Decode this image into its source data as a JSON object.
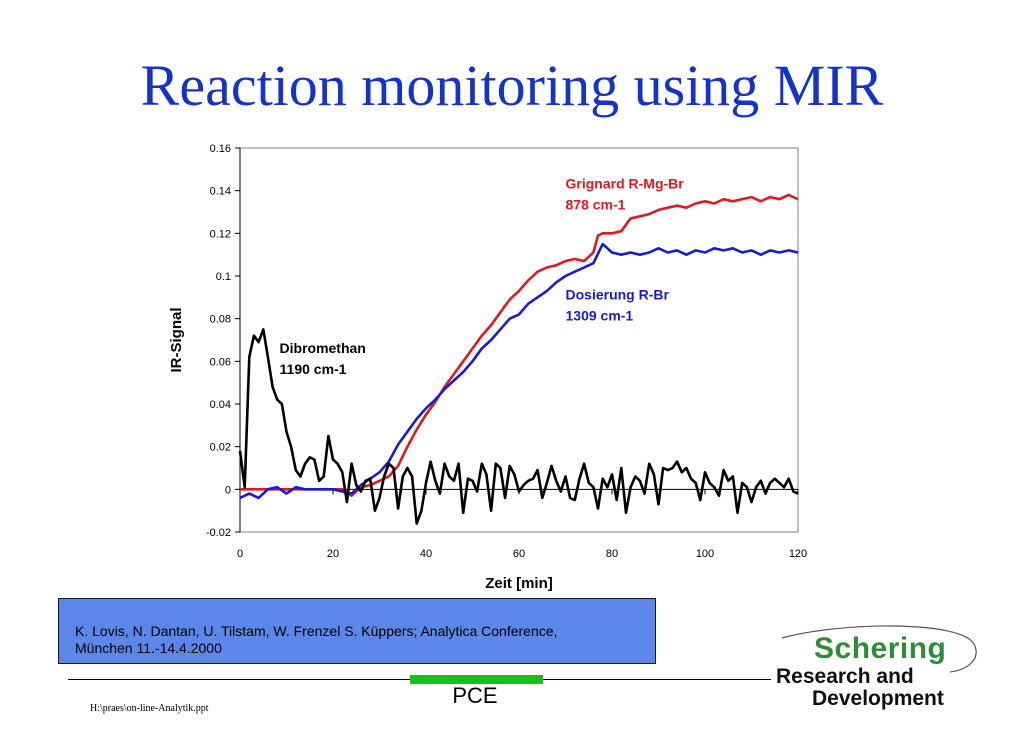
{
  "slide": {
    "title": "Reaction monitoring using MIR",
    "footer_label": "PCE",
    "file_path": "H:\\praes\\on-line-Analytik.ppt"
  },
  "reference": {
    "line1": "K. Lovis, N. Dantan, U. Tilstam, W. Frenzel S. Küppers; Analytica Conference,",
    "line2": "München 11.-14.4.2000"
  },
  "logo": {
    "brand": "Schering",
    "sub1": "Research and",
    "sub2": "Development"
  },
  "colors": {
    "title": "#1433cc",
    "grignard": "#e0191f",
    "dosierung": "#1a1ad6",
    "dibromethan": "#000000",
    "reference_box": "#5b86ea",
    "accent_bar": "#16c016"
  },
  "chart_data": {
    "type": "line",
    "xlabel": "Zeit [min]",
    "ylabel": "IR-Signal",
    "xlim": [
      0,
      120
    ],
    "ylim": [
      -0.02,
      0.16
    ],
    "xticks": [
      0,
      20,
      40,
      60,
      80,
      100,
      120
    ],
    "yticks": [
      -0.02,
      0,
      0.02,
      0.04,
      0.06,
      0.08,
      0.1,
      0.12,
      0.14,
      0.16
    ],
    "ytick_labels": [
      "-0.02",
      "0",
      "0.02",
      "0.04",
      "0.06",
      "0.08",
      "0.1",
      "0.12",
      "0.14",
      "0.16"
    ],
    "grid": false,
    "annotations": [
      {
        "series": "grignard",
        "lines": [
          "Grignard R-Mg-Br",
          "878 cm-1"
        ],
        "x": 70,
        "y": 0.141
      },
      {
        "series": "dosierung",
        "lines": [
          "Dosierung R-Br",
          "1309 cm-1"
        ],
        "x": 70,
        "y": 0.089
      },
      {
        "series": "dibromethan",
        "lines": [
          "Dibromethan",
          "1190 cm-1"
        ],
        "x": 8.5,
        "y": 0.064
      }
    ],
    "series": [
      {
        "id": "grignard",
        "color": "#e0191f",
        "x": [
          0,
          22,
          24,
          26,
          28,
          30,
          32,
          34,
          36,
          38,
          40,
          42,
          44,
          46,
          48,
          50,
          52,
          54,
          56,
          58,
          60,
          62,
          64,
          66,
          68,
          70,
          72,
          74,
          76,
          77,
          78,
          80,
          82,
          84,
          86,
          88,
          90,
          92,
          94,
          96,
          98,
          100,
          102,
          104,
          106,
          108,
          110,
          112,
          114,
          116,
          118,
          120
        ],
        "y": [
          0,
          0,
          -0.003,
          0.001,
          0.002,
          0.004,
          0.006,
          0.011,
          0.02,
          0.028,
          0.035,
          0.041,
          0.048,
          0.054,
          0.06,
          0.066,
          0.072,
          0.077,
          0.083,
          0.089,
          0.093,
          0.098,
          0.102,
          0.104,
          0.105,
          0.107,
          0.108,
          0.107,
          0.111,
          0.119,
          0.12,
          0.12,
          0.121,
          0.127,
          0.128,
          0.129,
          0.131,
          0.132,
          0.133,
          0.132,
          0.134,
          0.135,
          0.134,
          0.136,
          0.135,
          0.136,
          0.137,
          0.135,
          0.137,
          0.136,
          0.138,
          0.136
        ]
      },
      {
        "id": "dosierung",
        "color": "#1a1ad6",
        "x": [
          0,
          2,
          4,
          6,
          8,
          10,
          12,
          14,
          16,
          18,
          20,
          22,
          24,
          26,
          28,
          30,
          32,
          34,
          36,
          38,
          40,
          42,
          44,
          46,
          48,
          50,
          52,
          54,
          56,
          58,
          60,
          62,
          64,
          66,
          68,
          70,
          72,
          74,
          76,
          78,
          80,
          82,
          84,
          86,
          88,
          90,
          92,
          94,
          96,
          98,
          100,
          102,
          104,
          106,
          108,
          110,
          112,
          114,
          116,
          118,
          120
        ],
        "y": [
          -0.004,
          -0.002,
          -0.004,
          0,
          0.001,
          -0.002,
          0.001,
          0,
          0,
          0,
          0,
          -0.001,
          -0.002,
          0.002,
          0.005,
          0.008,
          0.013,
          0.021,
          0.027,
          0.033,
          0.038,
          0.042,
          0.047,
          0.051,
          0.055,
          0.06,
          0.066,
          0.07,
          0.075,
          0.08,
          0.082,
          0.087,
          0.09,
          0.093,
          0.097,
          0.1,
          0.102,
          0.104,
          0.106,
          0.115,
          0.111,
          0.11,
          0.111,
          0.11,
          0.111,
          0.113,
          0.111,
          0.112,
          0.11,
          0.112,
          0.111,
          0.113,
          0.112,
          0.113,
          0.111,
          0.112,
          0.11,
          0.112,
          0.111,
          0.112,
          0.111
        ]
      },
      {
        "id": "dibromethan",
        "color": "#000000",
        "x": [
          0,
          1,
          2,
          3,
          4,
          5,
          6,
          7,
          8,
          9,
          10,
          11,
          12,
          13,
          14,
          15,
          16,
          17,
          18,
          19,
          20,
          21,
          22,
          23,
          24,
          25,
          26,
          27,
          28,
          29,
          30,
          31,
          32,
          33,
          34,
          35,
          36,
          37,
          38,
          39,
          40,
          41,
          42,
          43,
          44,
          45,
          46,
          47,
          48,
          49,
          50,
          51,
          52,
          53,
          54,
          55,
          56,
          57,
          58,
          59,
          60,
          61,
          62,
          63,
          64,
          65,
          66,
          67,
          68,
          69,
          70,
          71,
          72,
          73,
          74,
          75,
          76,
          77,
          78,
          79,
          80,
          81,
          82,
          83,
          84,
          85,
          86,
          87,
          88,
          89,
          90,
          91,
          92,
          93,
          94,
          95,
          96,
          97,
          98,
          99,
          100,
          101,
          102,
          103,
          104,
          105,
          106,
          107,
          108,
          109,
          110,
          111,
          112,
          113,
          114,
          115,
          116,
          117,
          118,
          119,
          120
        ],
        "y": [
          0.018,
          0.001,
          0.062,
          0.072,
          0.069,
          0.075,
          0.062,
          0.048,
          0.042,
          0.04,
          0.027,
          0.02,
          0.009,
          0.006,
          0.012,
          0.015,
          0.014,
          0.004,
          0.006,
          0.025,
          0.014,
          0.012,
          0.008,
          -0.006,
          0.012,
          0.002,
          -0.001,
          0.004,
          0.005,
          -0.01,
          -0.004,
          0.006,
          0.012,
          0.01,
          -0.009,
          0.006,
          0.01,
          0.006,
          -0.016,
          -0.01,
          0.003,
          0.013,
          0.004,
          -0.002,
          0.012,
          0.006,
          0.004,
          0.012,
          -0.011,
          0.005,
          0.004,
          -0.001,
          0.012,
          0.007,
          -0.01,
          0.012,
          0.01,
          -0.004,
          0.011,
          0.007,
          -0.001,
          0.002,
          0.004,
          0.005,
          0.009,
          -0.004,
          0.003,
          0.011,
          0.004,
          -0.001,
          0.006,
          -0.004,
          -0.005,
          0.005,
          0.012,
          0.003,
          0.001,
          -0.009,
          0.005,
          0.001,
          0.007,
          -0.005,
          0.01,
          -0.011,
          0.001,
          0.006,
          0.004,
          -0.002,
          0.012,
          0.007,
          -0.007,
          0.01,
          0.009,
          0.01,
          0.013,
          0.008,
          0.01,
          0.005,
          0.003,
          -0.005,
          0.008,
          0.003,
          0.001,
          -0.003,
          0.009,
          0.004,
          0.006,
          -0.011,
          0.003,
          0.001,
          -0.006,
          0.001,
          0.004,
          -0.002,
          0.003,
          0.005,
          0.003,
          0.001,
          0.005,
          -0.001,
          -0.002
        ]
      }
    ]
  }
}
